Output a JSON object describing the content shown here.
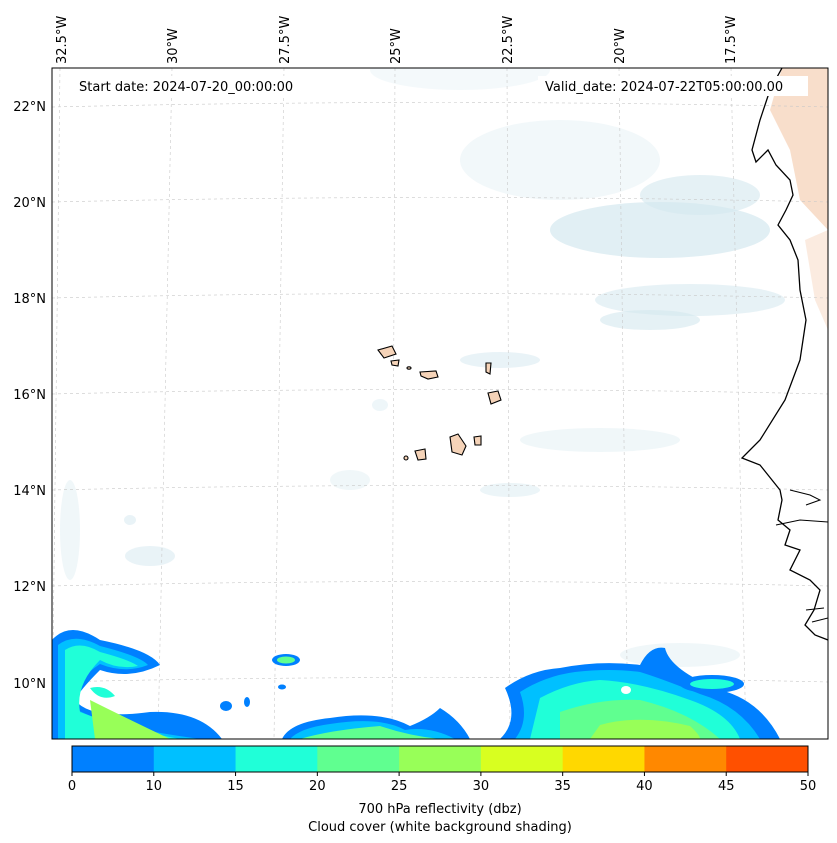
{
  "map": {
    "start_date": "Start date: 2024-07-20_00:00:00",
    "valid_date": "Valid_date: 2024-07-22T05:00:00.00",
    "lon_labels": [
      "32.5°W",
      "30°W",
      "27.5°W",
      "25°W",
      "22.5°W",
      "20°W",
      "17.5°W"
    ],
    "lat_labels": [
      "22°N",
      "20°N",
      "18°N",
      "16°N",
      "14°N",
      "12°N",
      "10°N"
    ],
    "gridlines": "dashed"
  },
  "colorbar": {
    "ticks": [
      "0",
      "10",
      "15",
      "20",
      "25",
      "30",
      "35",
      "40",
      "45",
      "50"
    ],
    "colors": [
      "#0080ff",
      "#00c0ff",
      "#20ffd8",
      "#60ff90",
      "#98ff58",
      "#d8ff20",
      "#ffd800",
      "#ff8800",
      "#ff5000"
    ],
    "label": "700 hPa reflectivity (dbz)",
    "sublabel": "Cloud cover (white background shading)"
  },
  "colors": {
    "cloud_shading": "#d4e8ef",
    "land": "#f5d3b8",
    "coastline": "#000000"
  }
}
